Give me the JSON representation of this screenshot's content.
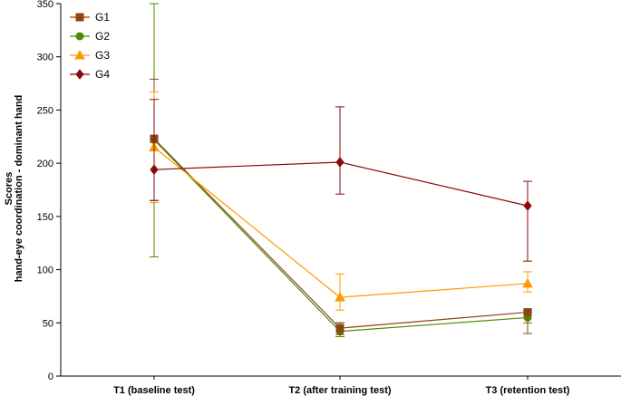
{
  "chart_data": {
    "type": "line",
    "title": "",
    "xlabel": "",
    "ylabel": [
      "Scores",
      "hand-eye coordination - dominant hand"
    ],
    "ylim": [
      0,
      350
    ],
    "yticks": [
      0,
      50,
      100,
      150,
      200,
      250,
      300,
      350
    ],
    "categories": [
      "T1 (baseline test)",
      "T2 (after training test)",
      "T3 (retention test)"
    ],
    "legend_position": "top-left",
    "grid": false,
    "series": [
      {
        "name": "G1",
        "marker": "square",
        "color": "#8B4513",
        "values": [
          223,
          45,
          60
        ],
        "err_upper": [
          56,
          5,
          2
        ],
        "err_lower": [
          58,
          6,
          20
        ]
      },
      {
        "name": "G2",
        "marker": "circle",
        "color": "#4E8A00",
        "values": [
          222,
          42,
          55
        ],
        "err_upper": [
          128,
          8,
          5
        ],
        "err_lower": [
          110,
          5,
          5
        ]
      },
      {
        "name": "G3",
        "marker": "triangle",
        "color": "#FF9900",
        "values": [
          215,
          74,
          87
        ],
        "err_upper": [
          52,
          22,
          11
        ],
        "err_lower": [
          52,
          12,
          8
        ]
      },
      {
        "name": "G4",
        "marker": "diamond",
        "color": "#8B0A0A",
        "values": [
          194,
          201,
          160
        ],
        "err_upper": [
          66,
          52,
          23
        ],
        "err_lower": [
          29,
          30,
          52
        ]
      }
    ]
  }
}
